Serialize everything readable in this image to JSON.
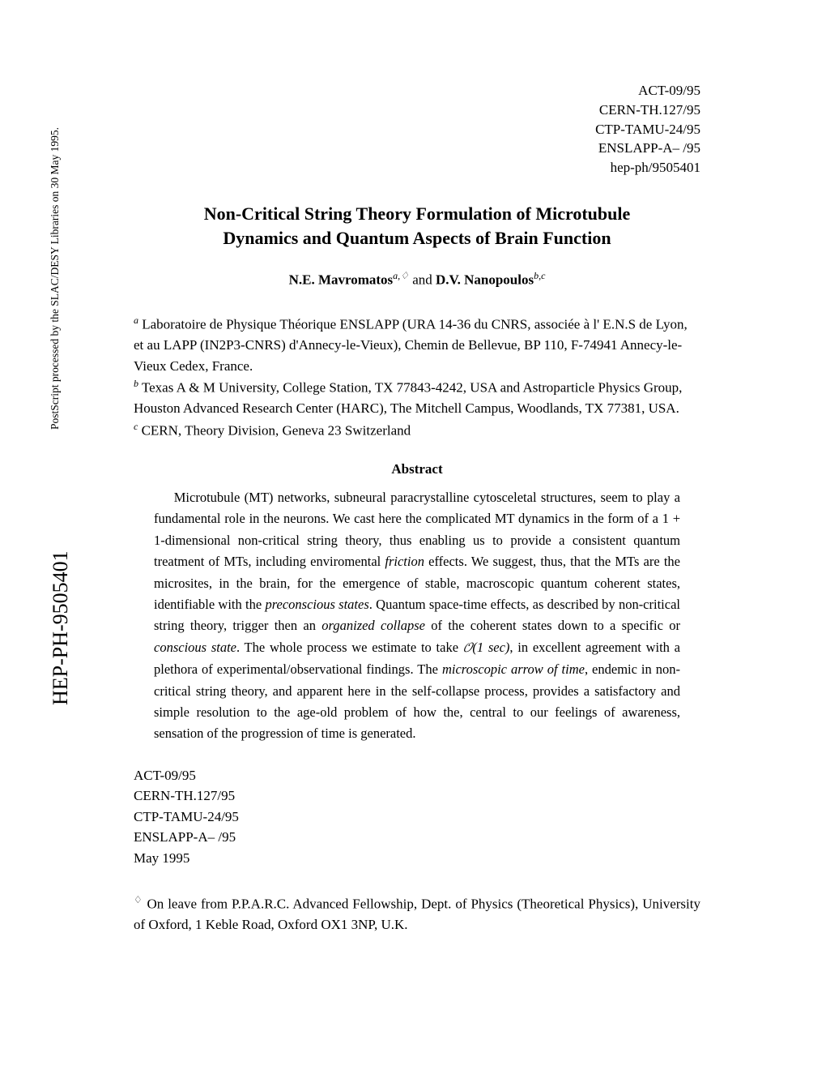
{
  "report_numbers_top": [
    "ACT-09/95",
    "CERN-TH.127/95",
    "CTP-TAMU-24/95",
    "ENSLAPP-A– /95",
    "hep-ph/9505401"
  ],
  "title_line1": "Non-Critical String Theory Formulation of Microtubule",
  "title_line2": "Dynamics and Quantum Aspects of Brain Function",
  "author1": "N.E. Mavromatos",
  "author1_sup": "a,♢",
  "and": " and ",
  "author2": "D.V. Nanopoulos",
  "author2_sup": "b,c",
  "aff_a_label": "a",
  "aff_a": " Laboratoire de Physique Théorique ENSLAPP (URA 14-36 du CNRS, associée à l' E.N.S de Lyon, et au LAPP (IN2P3-CNRS) d'Annecy-le-Vieux), Chemin de Bellevue, BP 110, F-74941 Annecy-le-Vieux Cedex, France.",
  "aff_b_label": "b",
  "aff_b": " Texas A & M University, College Station, TX 77843-4242, USA and Astroparticle Physics Group, Houston Advanced Research Center (HARC), The Mitchell Campus, Woodlands, TX 77381, USA.",
  "aff_c_label": "c",
  "aff_c": " CERN, Theory Division, Geneva 23 Switzerland",
  "abstract_heading": "Abstract",
  "abs_1": "Microtubule (MT) networks, subneural paracrystalline cytosceletal structures, seem to play a fundamental role in the neurons. We cast here the complicated MT dynamics in the form of a 1 + 1-dimensional non-critical string theory, thus enabling us to provide a consistent quantum treatment of MTs, including enviromental ",
  "abs_friction": "friction",
  "abs_2": " effects. We suggest, thus, that the MTs are the microsites, in the brain, for the emergence of stable, macroscopic quantum coherent states, identifiable with the ",
  "abs_preconscious": "preconscious states",
  "abs_3": ". Quantum space-time effects, as described by non-critical string theory, trigger then an ",
  "abs_collapse": "organized collapse",
  "abs_4": " of the coherent states down to a specific or ",
  "abs_conscious": "conscious state",
  "abs_5": ". The whole process we estimate to take ",
  "abs_O": "𝒪",
  "abs_time": "(1 sec)",
  "abs_6": ", in excellent agreement with a plethora of experimental/observational findings. The ",
  "abs_arrow": "microscopic arrow of time",
  "abs_7": ", endemic in non-critical string theory, and apparent here in the self-collapse process, provides a satisfactory and simple resolution to the age-old problem of how the, central to our feelings of awareness, sensation of the progression of time is generated.",
  "report_numbers_bottom": [
    "ACT-09/95",
    "CERN-TH.127/95",
    "CTP-TAMU-24/95",
    "ENSLAPP-A– /95",
    "May 1995"
  ],
  "footnote_mark": "♢",
  "footnote": " On leave from P.P.A.R.C. Advanced Fellowship, Dept. of Physics (Theoretical Physics), University of Oxford, 1 Keble Road, Oxford OX1 3NP, U.K.",
  "side_large": "HEP-PH-9505401",
  "side_small": "PostScript  processed by the SLAC/DESY Libraries on 30 May 1995."
}
